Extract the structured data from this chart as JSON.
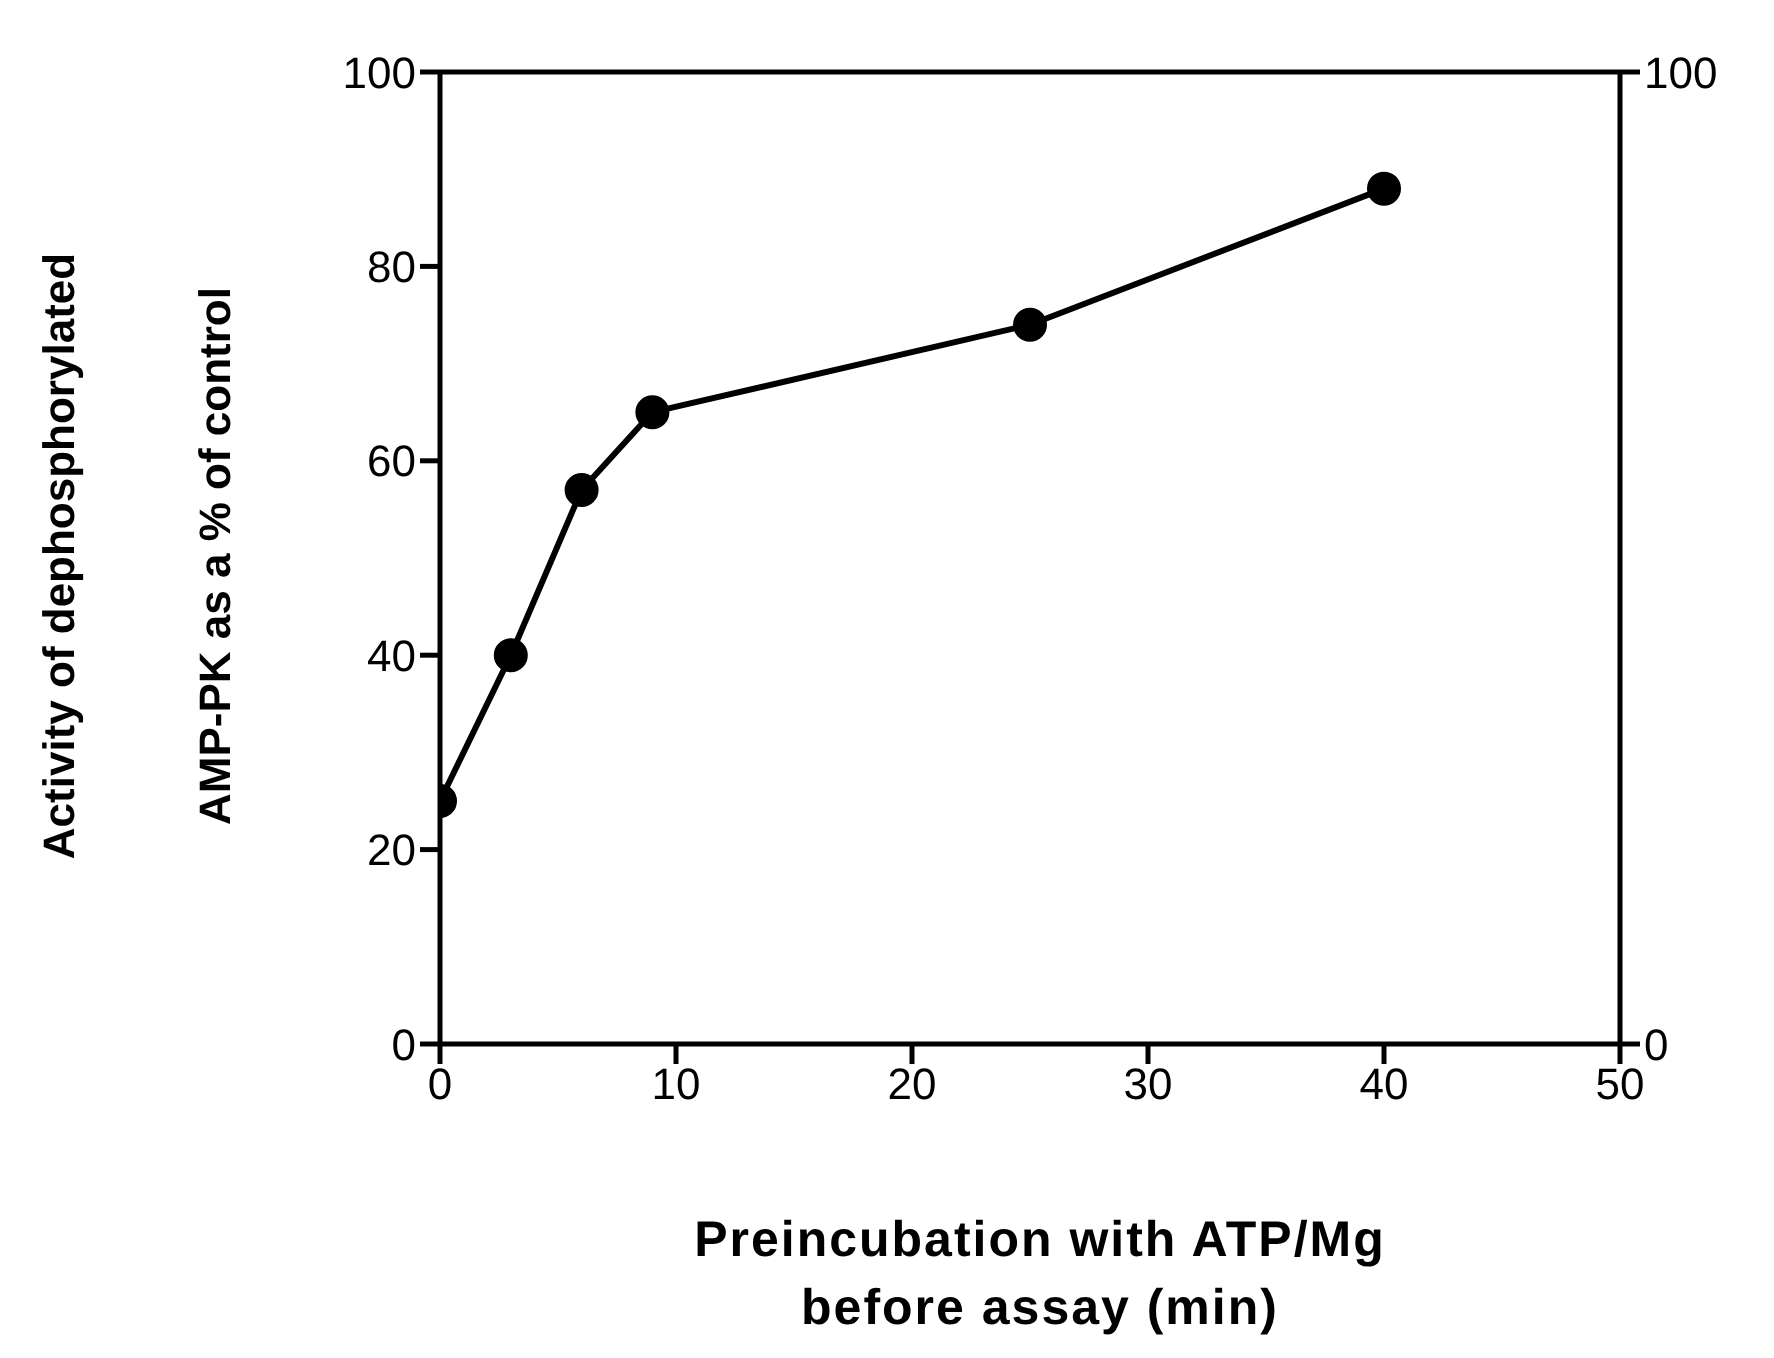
{
  "chart_data": {
    "type": "line",
    "xlabel": "Preincubation with ATP/Mg\nbefore assay (min)",
    "ylabel": "Activity of dephosphorylated\nAMP-PK as a % of control",
    "x": [
      0,
      3,
      6,
      9,
      25,
      40
    ],
    "series": [
      {
        "color": "#000000",
        "values": [
          25,
          40,
          57,
          65,
          74,
          88
        ]
      }
    ],
    "xlim": [
      0,
      50
    ],
    "xticks": [
      0,
      10,
      20,
      30,
      40,
      50
    ],
    "ylim": [
      0,
      100
    ],
    "yticks": [
      0,
      20,
      40,
      60,
      80,
      100
    ],
    "y2lim": [
      0,
      100
    ],
    "y2ticks": [
      0,
      100
    ],
    "marker": "circle",
    "line_style": "solid"
  }
}
